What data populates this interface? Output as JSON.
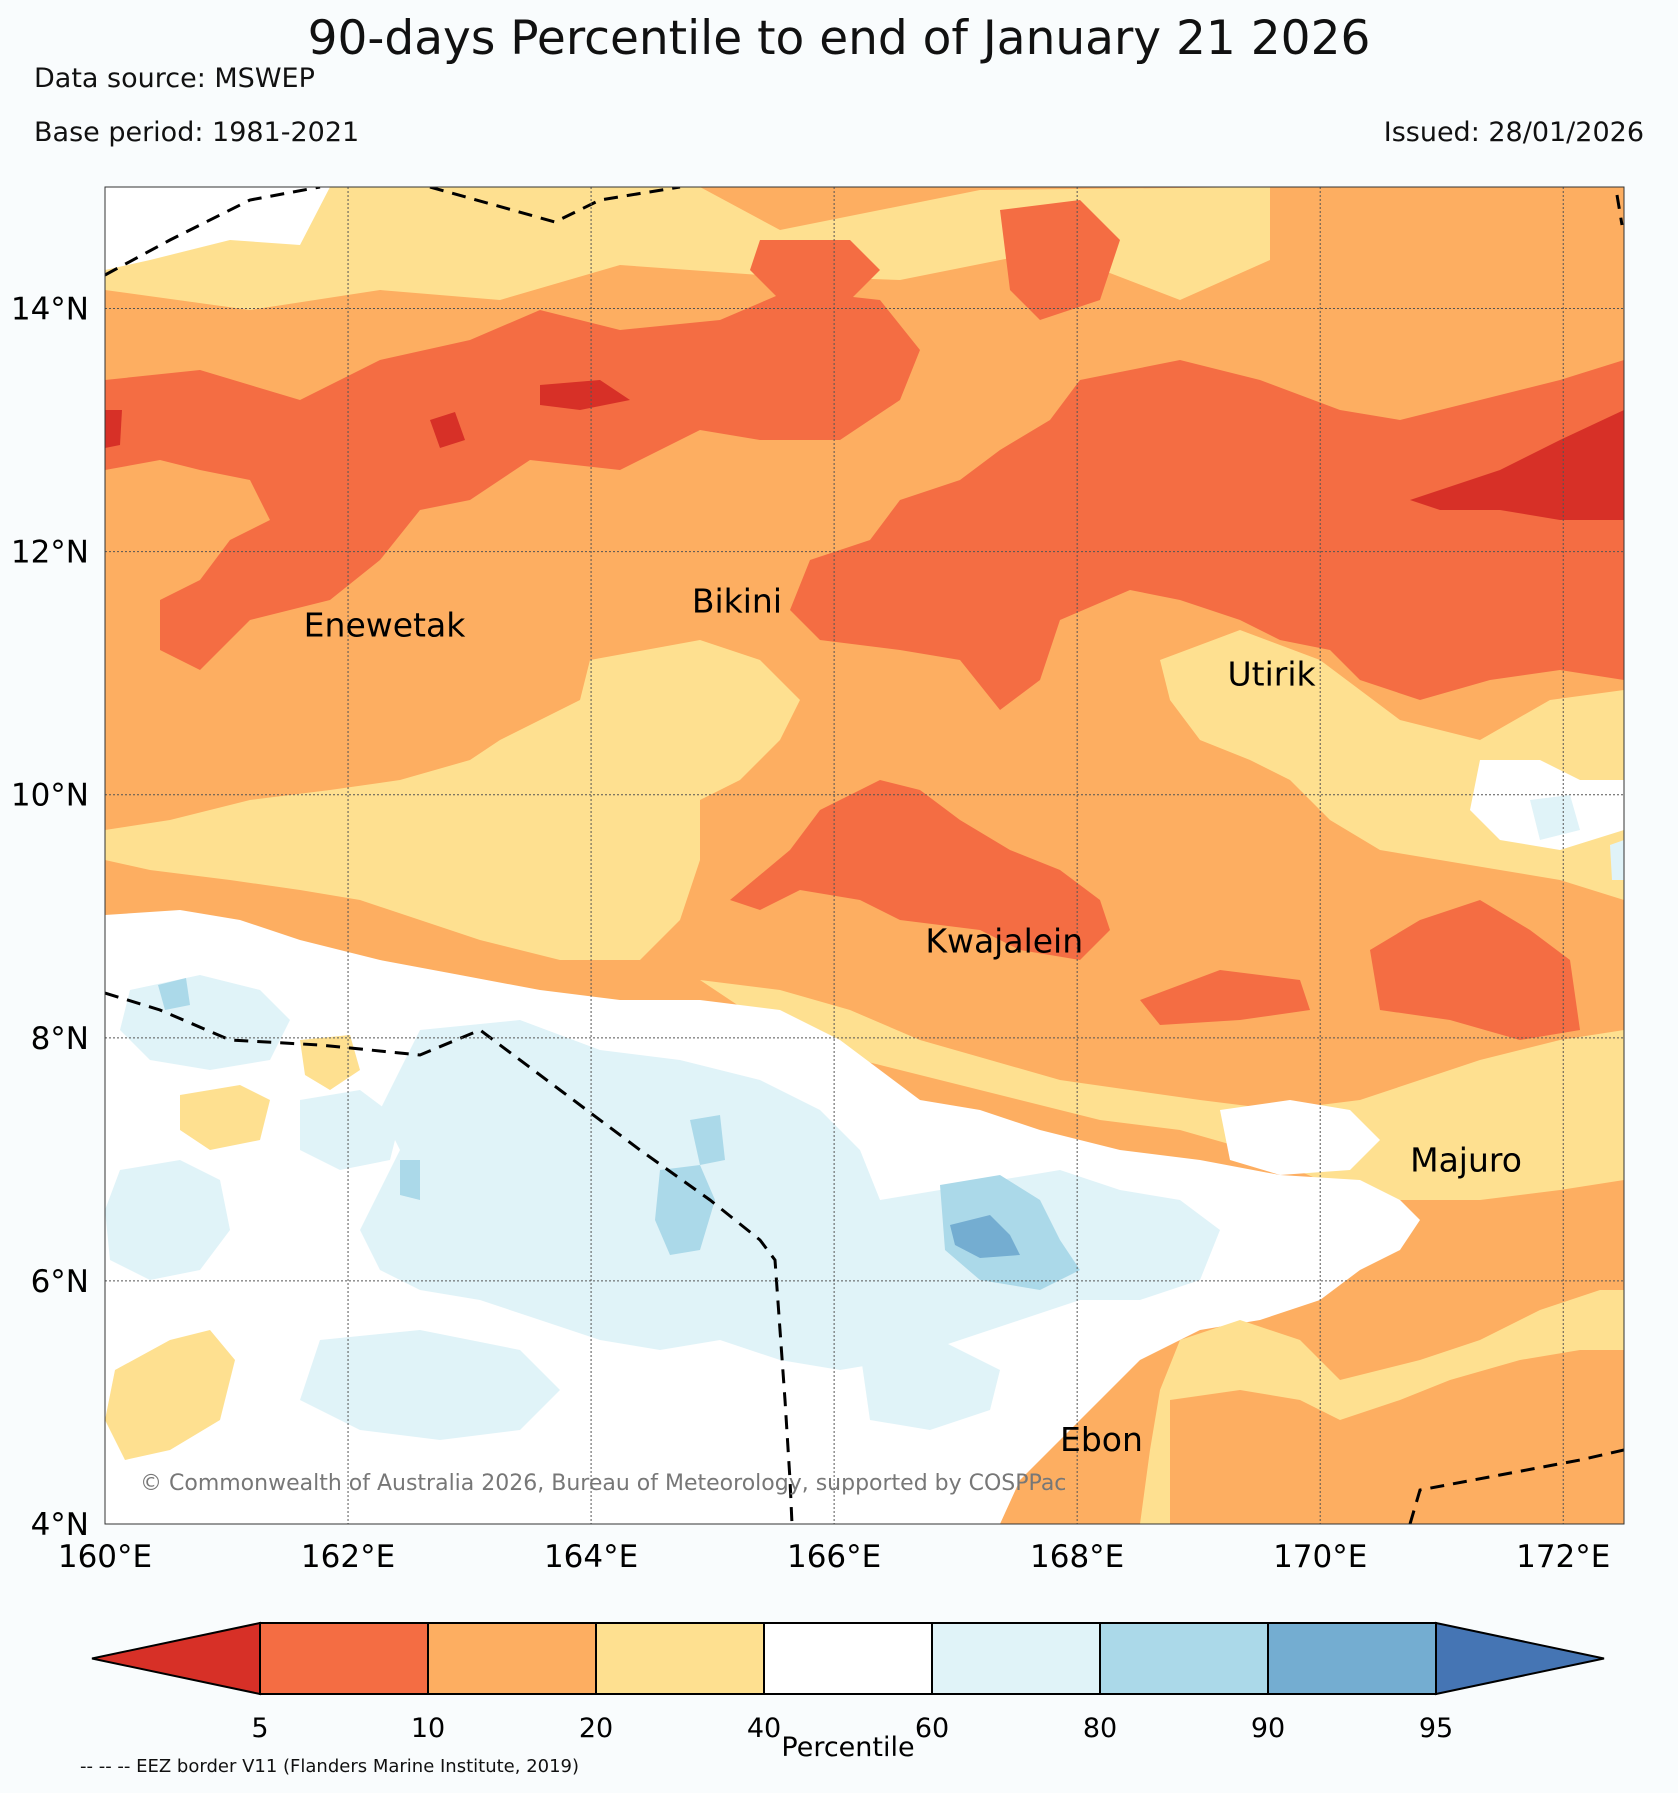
{
  "title": "90-days Percentile to end of January 21 2026",
  "data_source": "Data source: MSWEP",
  "base_period": "Base period: 1981-2021",
  "issued": "Issued: 28/01/2026",
  "copyright": "© Commonwealth of Australia 2026, Bureau of Meteorology, supported by COSPPac",
  "footnote": "-- -- -- EEZ border V11 (Flanders Marine Institute, 2019)",
  "map": {
    "lon_range": [
      160,
      172.5
    ],
    "lat_range": [
      4,
      15
    ],
    "x_ticks": [
      "160°E",
      "162°E",
      "164°E",
      "166°E",
      "168°E",
      "170°E",
      "172°E"
    ],
    "y_ticks": [
      "4°N",
      "6°N",
      "8°N",
      "10°N",
      "12°N",
      "14°N"
    ],
    "places": [
      {
        "name": "Enewetak",
        "lon": 162.3,
        "lat": 11.3
      },
      {
        "name": "Bikini",
        "lon": 165.2,
        "lat": 11.5
      },
      {
        "name": "Utirik",
        "lon": 169.6,
        "lat": 10.9
      },
      {
        "name": "Kwajalein",
        "lon": 167.4,
        "lat": 8.7
      },
      {
        "name": "Majuro",
        "lon": 171.2,
        "lat": 6.9
      },
      {
        "name": "Ebon",
        "lon": 168.2,
        "lat": 4.6
      }
    ]
  },
  "legend": {
    "label": "Percentile",
    "ticks": [
      "5",
      "10",
      "20",
      "40",
      "60",
      "80",
      "90",
      "95"
    ],
    "colors": [
      "#d73027",
      "#f46d43",
      "#fdae61",
      "#fee090",
      "#ffffff",
      "#e0f3f8",
      "#abd9e9",
      "#74add1",
      "#4575b4"
    ]
  }
}
